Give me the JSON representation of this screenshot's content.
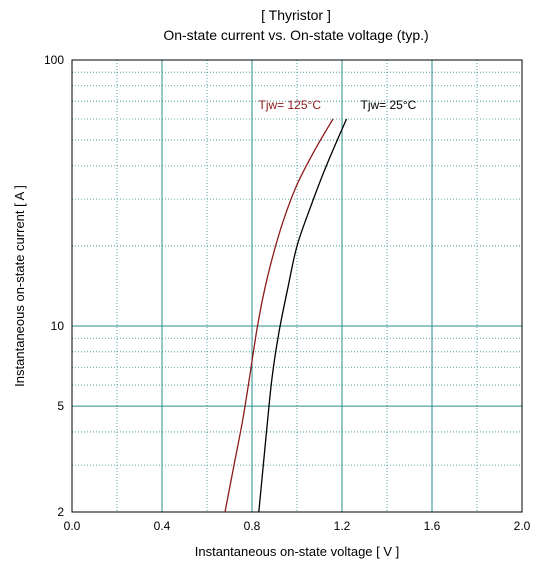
{
  "chart_data": {
    "type": "line",
    "title": "[ Thyristor ]",
    "subtitle": "On-state current  vs.  On-state voltage  (typ.)",
    "xlabel": "Instantaneous on-state voltage   [ V ]",
    "ylabel": "Instantaneous on-state current    [ A ]",
    "xlim": [
      0.0,
      2.0
    ],
    "ylim": [
      2,
      100
    ],
    "yscale": "log",
    "x_ticks": [
      "0.0",
      "0.4",
      "0.8",
      "1.2",
      "1.6",
      "2.0"
    ],
    "y_ticks": [
      "2",
      "5",
      "10",
      "100"
    ],
    "grid": true,
    "series": [
      {
        "name": "Tjw= 125°C",
        "color": "#8b1a1a",
        "x": [
          0.68,
          0.72,
          0.76,
          0.79,
          0.82,
          0.85,
          0.89,
          0.94,
          1.0,
          1.08,
          1.16
        ],
        "y": [
          2,
          3,
          4.5,
          6.5,
          9.5,
          13,
          18,
          25,
          34,
          46,
          60
        ]
      },
      {
        "name": "Tjw= 25°C",
        "color": "#000000",
        "x": [
          0.83,
          0.85,
          0.87,
          0.89,
          0.92,
          0.96,
          1.0,
          1.06,
          1.13,
          1.22
        ],
        "y": [
          2,
          3,
          4.5,
          6.5,
          9.5,
          14,
          20,
          28,
          40,
          60
        ]
      }
    ]
  }
}
